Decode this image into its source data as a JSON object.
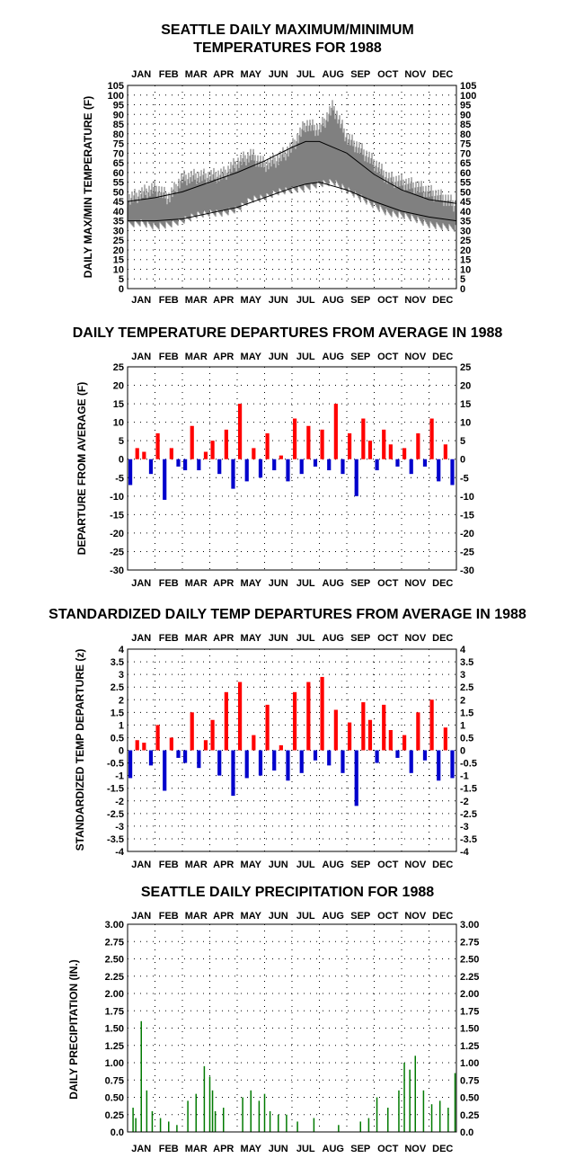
{
  "chart_data": [
    {
      "id": "maxmin",
      "type": "line",
      "title_lines": [
        "SEATTLE DAILY MAXIMUM/MINIMUM",
        "TEMPERATURES FOR 1988"
      ],
      "ylabel": "DAILY MAX/MIN TEMPERATURE (F)",
      "months": [
        "JAN",
        "FEB",
        "MAR",
        "APR",
        "MAY",
        "JUN",
        "JUL",
        "AUG",
        "SEP",
        "OCT",
        "NOV",
        "DEC"
      ],
      "ylim": [
        0,
        105
      ],
      "yticks": [
        0,
        5,
        10,
        15,
        20,
        25,
        30,
        35,
        40,
        45,
        50,
        55,
        60,
        65,
        70,
        75,
        80,
        85,
        90,
        95,
        100,
        105
      ],
      "grid": true,
      "x_unit": "month of 1988 (0 = Jan 1, 12 = Dec 31)",
      "series": [
        {
          "role": "observed range",
          "color": "#808080",
          "x": [
            0,
            0.5,
            1,
            1.5,
            2,
            2.5,
            3,
            3.5,
            4,
            4.5,
            5,
            5.5,
            6,
            6.5,
            7,
            7.5,
            8,
            8.5,
            9,
            9.5,
            10,
            10.5,
            11,
            11.5,
            12
          ],
          "high": [
            46,
            49,
            52,
            47,
            57,
            58,
            58,
            59,
            65,
            69,
            64,
            67,
            73,
            85,
            82,
            94,
            78,
            72,
            65,
            57,
            55,
            53,
            50,
            47,
            43
          ],
          "low": [
            33,
            34,
            32,
            33,
            35,
            38,
            39,
            39,
            41,
            46,
            47,
            50,
            51,
            52,
            54,
            55,
            51,
            47,
            43,
            39,
            38,
            36,
            33,
            32,
            31
          ]
        },
        {
          "name": "",
          "role": "normal max",
          "color": "#000000",
          "x": [
            0,
            1,
            2,
            3,
            4,
            5,
            6,
            6.5,
            7,
            8,
            9,
            10,
            11,
            12
          ],
          "values": [
            45,
            47,
            50,
            55,
            60,
            66,
            73,
            76,
            76,
            70,
            59,
            51,
            46,
            44
          ]
        },
        {
          "name": "",
          "role": "normal min",
          "color": "#000000",
          "x": [
            0,
            1,
            2,
            3,
            4,
            5,
            6,
            6.5,
            7,
            8,
            9,
            10,
            11,
            12
          ],
          "values": [
            35,
            35,
            36,
            39,
            42,
            47,
            52,
            54,
            55,
            51,
            45,
            40,
            37,
            35
          ]
        }
      ]
    },
    {
      "id": "departure",
      "type": "bar",
      "title": "DAILY TEMPERATURE DEPARTURES FROM AVERAGE IN 1988",
      "ylabel": "DEPARTURE FROM AVERAGE (F)",
      "months": [
        "JAN",
        "FEB",
        "MAR",
        "APR",
        "MAY",
        "JUN",
        "JUL",
        "AUG",
        "SEP",
        "OCT",
        "NOV",
        "DEC"
      ],
      "ylim": [
        -30,
        25
      ],
      "yticks": [
        -30,
        -25,
        -20,
        -15,
        -10,
        -5,
        0,
        5,
        10,
        15,
        20,
        25
      ],
      "grid": true,
      "positive_color": "#ff0000",
      "negative_color": "#0000cc",
      "x_unit": "month of 1988",
      "x": [
        0,
        0.25,
        0.5,
        0.75,
        1,
        1.25,
        1.5,
        1.75,
        2,
        2.25,
        2.5,
        2.75,
        3,
        3.25,
        3.5,
        3.75,
        4,
        4.25,
        4.5,
        4.75,
        5,
        5.25,
        5.5,
        5.75,
        6,
        6.25,
        6.5,
        6.75,
        7,
        7.25,
        7.5,
        7.75,
        8,
        8.25,
        8.5,
        8.75,
        9,
        9.25,
        9.5,
        9.75,
        10,
        10.25,
        10.5,
        10.75,
        11,
        11.25,
        11.5,
        11.75
      ],
      "values": [
        -7,
        3,
        2,
        -4,
        7,
        -11,
        3,
        -2,
        -3,
        9,
        -3,
        2,
        5,
        -4,
        8,
        -8,
        15,
        -6,
        3,
        -5,
        7,
        -3,
        1,
        -6,
        11,
        -4,
        9,
        -2,
        8,
        -3,
        15,
        -4,
        7,
        -10,
        11,
        5,
        -3,
        8,
        4,
        -2,
        3,
        -4,
        7,
        -2,
        11,
        -6,
        4,
        -7
      ]
    },
    {
      "id": "standardized",
      "type": "bar",
      "title": "STANDARDIZED DAILY TEMP DEPARTURES FROM AVERAGE IN 1988",
      "ylabel": "STANDARDIZED TEMP DEPARTURE (z)",
      "months": [
        "JAN",
        "FEB",
        "MAR",
        "APR",
        "MAY",
        "JUN",
        "JUL",
        "AUG",
        "SEP",
        "OCT",
        "NOV",
        "DEC"
      ],
      "ylim": [
        -4,
        4
      ],
      "yticks": [
        -4.0,
        -3.5,
        -3.0,
        -2.5,
        -2.0,
        -1.5,
        -1.0,
        -0.5,
        0.0,
        0.5,
        1.0,
        1.5,
        2.0,
        2.5,
        3.0,
        3.5,
        4.0
      ],
      "grid": true,
      "positive_color": "#ff0000",
      "negative_color": "#0000cc",
      "x_unit": "month of 1988",
      "x": [
        0,
        0.25,
        0.5,
        0.75,
        1,
        1.25,
        1.5,
        1.75,
        2,
        2.25,
        2.5,
        2.75,
        3,
        3.25,
        3.5,
        3.75,
        4,
        4.25,
        4.5,
        4.75,
        5,
        5.25,
        5.5,
        5.75,
        6,
        6.25,
        6.5,
        6.75,
        7,
        7.25,
        7.5,
        7.75,
        8,
        8.25,
        8.5,
        8.75,
        9,
        9.25,
        9.5,
        9.75,
        10,
        10.25,
        10.5,
        10.75,
        11,
        11.25,
        11.5,
        11.75
      ],
      "values": [
        -1.1,
        0.4,
        0.3,
        -0.6,
        1.0,
        -1.6,
        0.5,
        -0.3,
        -0.5,
        1.5,
        -0.7,
        0.4,
        1.2,
        -1.0,
        2.3,
        -1.8,
        2.7,
        -1.1,
        0.6,
        -1.0,
        1.8,
        -0.8,
        0.2,
        -1.2,
        2.3,
        -0.9,
        2.7,
        -0.4,
        2.9,
        -0.6,
        1.6,
        -0.9,
        1.1,
        -2.2,
        1.9,
        1.2,
        -0.5,
        1.8,
        0.8,
        -0.3,
        0.6,
        -0.9,
        1.5,
        -0.4,
        2.0,
        -1.2,
        0.9,
        -1.1
      ]
    },
    {
      "id": "precip",
      "type": "bar",
      "title": "SEATTLE DAILY PRECIPITATION FOR 1988",
      "ylabel": "DAILY PRECIPITATION (IN.)",
      "months": [
        "JAN",
        "FEB",
        "MAR",
        "APR",
        "MAY",
        "JUN",
        "JUL",
        "AUG",
        "SEP",
        "OCT",
        "NOV",
        "DEC"
      ],
      "ylim": [
        0,
        3
      ],
      "yticks": [
        "0.0",
        "0.25",
        "0.50",
        "0.75",
        "1.00",
        "1.25",
        "1.50",
        "1.75",
        "2.00",
        "2.25",
        "2.50",
        "2.75",
        "3.00"
      ],
      "grid": true,
      "color": "#007a00",
      "x_unit": "month of 1988",
      "x": [
        0.2,
        0.3,
        0.5,
        0.7,
        0.9,
        1.2,
        1.5,
        1.8,
        2.2,
        2.5,
        2.8,
        3.0,
        3.1,
        3.2,
        3.5,
        4.2,
        4.5,
        4.8,
        5.0,
        5.2,
        5.5,
        5.8,
        6.2,
        6.8,
        7.7,
        8.5,
        8.8,
        9.1,
        9.5,
        9.9,
        10.1,
        10.3,
        10.5,
        10.8,
        11.1,
        11.4,
        11.7,
        11.95
      ],
      "values": [
        0.35,
        0.2,
        1.6,
        0.6,
        0.3,
        0.2,
        0.15,
        0.1,
        0.45,
        0.55,
        0.95,
        0.8,
        0.6,
        0.3,
        0.35,
        0.5,
        0.6,
        0.45,
        0.55,
        0.3,
        0.25,
        0.25,
        0.15,
        0.2,
        0.1,
        0.15,
        0.2,
        0.5,
        0.35,
        0.6,
        1.0,
        0.9,
        1.1,
        0.6,
        0.4,
        0.45,
        0.35,
        0.85
      ]
    }
  ]
}
